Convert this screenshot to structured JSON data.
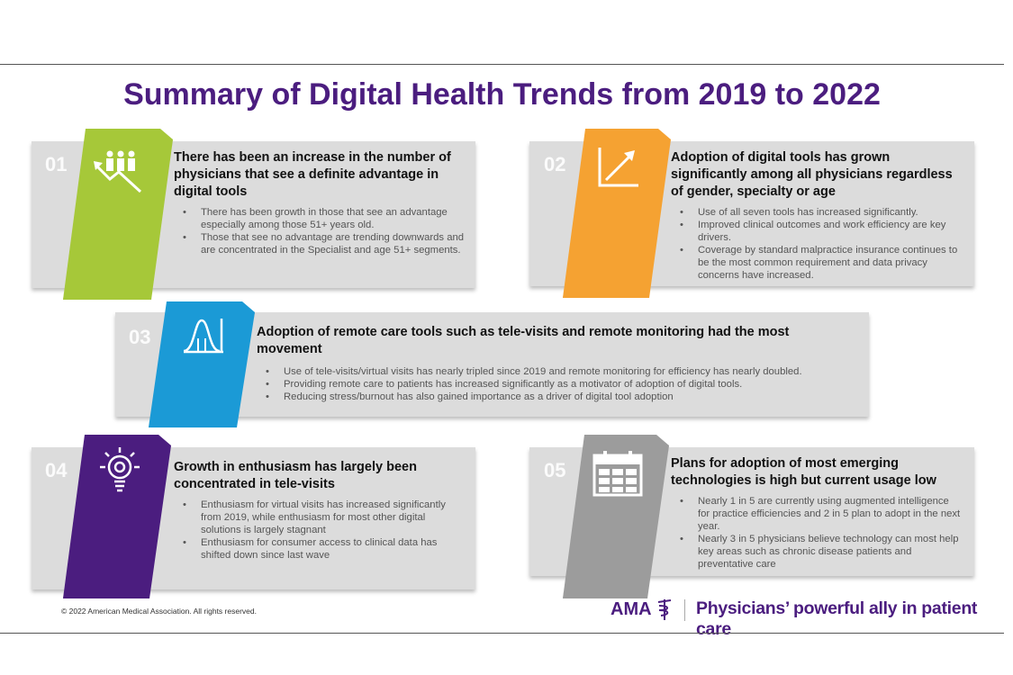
{
  "title": "Summary of Digital Health Trends from 2019 to 2022",
  "colors": {
    "title": "#4b1d7f",
    "panel": "#dcdcdc",
    "green": "#a6c839",
    "orange": "#f5a232",
    "blue": "#1b9ad6",
    "purple": "#4b1d7f",
    "gray": "#9c9c9c"
  },
  "panels": [
    {
      "number": "01",
      "icon": "people-growth-arrow-icon",
      "heading": "There has been an increase in the number of physicians that see a definite advantage in digital tools",
      "bullets": [
        "There has been growth in those that see an advantage especially among those 51+ years old.",
        "Those that see no advantage are trending downwards and are concentrated in the Specialist and age 51+ segments."
      ]
    },
    {
      "number": "02",
      "icon": "chart-arrow-up-icon",
      "heading": "Adoption of digital tools has grown significantly among all physicians regardless of gender, specialty or age",
      "bullets": [
        "Use of all seven tools has increased significantly.",
        "Improved clinical outcomes and work efficiency are key drivers.",
        "Coverage by standard malpractice insurance continues to be the most common requirement and data privacy concerns have increased."
      ]
    },
    {
      "number": "03",
      "icon": "bell-curve-icon",
      "heading": "Adoption of remote care tools such as tele-visits and remote monitoring had the most movement",
      "bullets": [
        "Use of tele-visits/virtual visits has nearly tripled since 2019 and remote monitoring for efficiency has nearly doubled.",
        "Providing remote care to patients has increased significantly as a motivator of adoption of digital tools.",
        "Reducing stress/burnout has also gained importance as a driver of digital tool adoption"
      ]
    },
    {
      "number": "04",
      "icon": "lightbulb-gear-icon",
      "heading": "Growth in enthusiasm has largely been concentrated in tele-visits",
      "bullets": [
        "Enthusiasm for virtual visits has increased significantly from 2019, while enthusiasm for most other digital solutions is largely stagnant",
        "Enthusiasm for consumer access to clinical data has shifted down since last wave"
      ]
    },
    {
      "number": "05",
      "icon": "calendar-icon",
      "heading": "Plans for adoption of most emerging technologies is high but current usage low",
      "bullets": [
        "Nearly 1 in 5 are currently using augmented intelligence for practice efficiencies and 2 in 5 plan to adopt in the next year.",
        "Nearly 3 in 5 physicians believe technology can most help key areas such as chronic disease patients and preventative care"
      ]
    }
  ],
  "footer": {
    "copyright": "© 2022 American Medical Association. All rights reserved.",
    "logo": "AMA",
    "tagline": "Physicians’ powerful ally in patient care"
  }
}
